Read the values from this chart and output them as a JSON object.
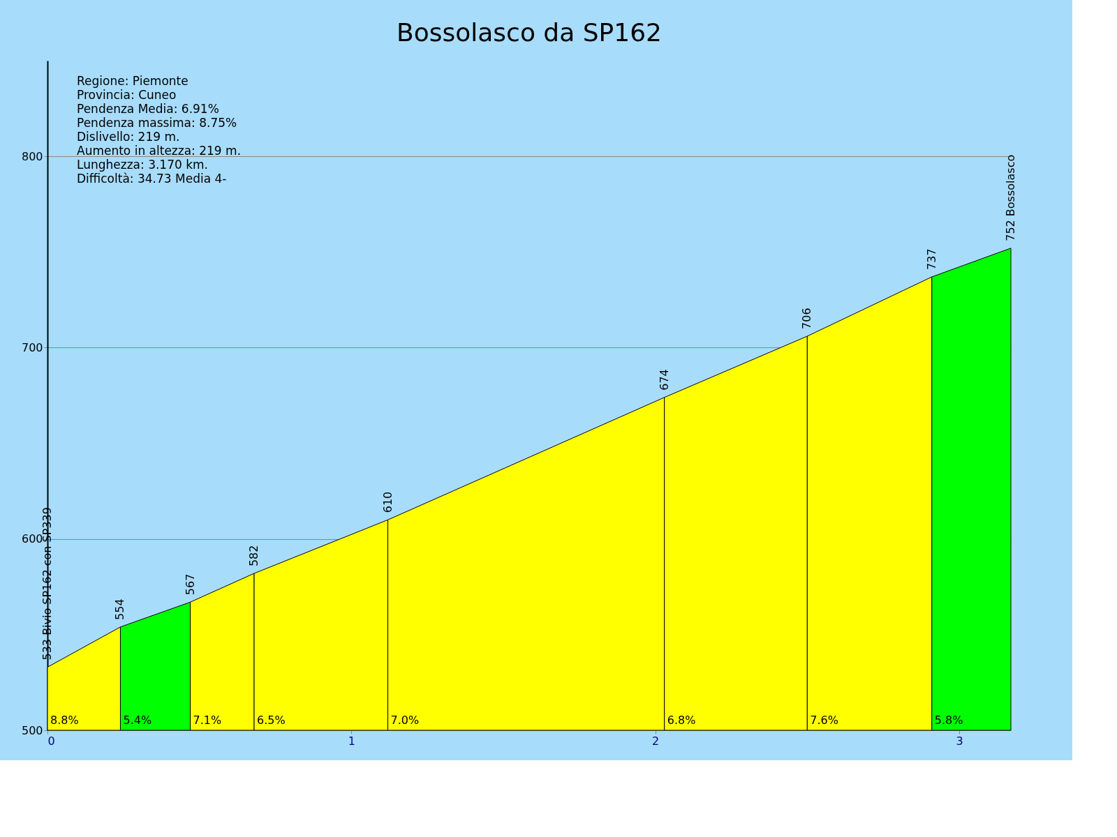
{
  "chart_data": {
    "type": "area",
    "title": "Bossolasco da SP162",
    "xlim": [
      0,
      3.17
    ],
    "xticks": [
      0,
      1,
      2,
      3
    ],
    "ylim": [
      500,
      850
    ],
    "yticks": [
      500,
      600,
      700,
      800
    ],
    "grid": "y",
    "series": [
      {
        "color": "#ffff00",
        "x": [
          0,
          0.24
        ],
        "values": [
          533,
          554
        ],
        "value_labels": [
          "533 Bivio SP162 con SP339",
          "554"
        ]
      },
      {
        "color": "#00ff00",
        "x": [
          0.24,
          0.47
        ],
        "values": [
          554,
          567
        ],
        "value_labels": [
          null,
          "567"
        ]
      },
      {
        "color": "#ffff00",
        "x": [
          0.47,
          0.68
        ],
        "values": [
          567,
          582
        ],
        "value_labels": [
          null,
          "582"
        ]
      },
      {
        "color": "#ffff00",
        "x": [
          0.68,
          1.12
        ],
        "values": [
          582,
          610
        ],
        "value_labels": [
          null,
          "610"
        ]
      },
      {
        "color": "#ffff00",
        "x": [
          1.12,
          2.03
        ],
        "values": [
          610,
          674
        ],
        "value_labels": [
          null,
          "674"
        ]
      },
      {
        "color": "#ffff00",
        "x": [
          2.03,
          2.5
        ],
        "values": [
          674,
          706
        ],
        "value_labels": [
          null,
          "706"
        ]
      },
      {
        "color": "#ffff00",
        "x": [
          2.5,
          2.91
        ],
        "values": [
          706,
          737
        ],
        "value_labels": [
          null,
          "737"
        ]
      },
      {
        "color": "#00ff00",
        "x": [
          2.91,
          3.17
        ],
        "values": [
          737,
          752
        ],
        "value_labels": [
          null,
          "752 Bossolasco"
        ]
      }
    ],
    "annotations": [
      "Regione: Piemonte",
      "Provincia: Cuneo",
      "Pendenza Media: 6.91%",
      "Pendenza massima: 8.75%",
      "Dislivello:   219 m.",
      "Aumento in altezza:   219 m.",
      "Lunghezza:  3.170 km.",
      "Difficoltà: 34.73 Media 4-",
      {
        "text": "8.8%",
        "x": 0,
        "y": 500
      },
      {
        "text": "5.4%",
        "x": 0.24,
        "y": 500
      },
      {
        "text": "7.1%",
        "x": 0.47,
        "y": 500
      },
      {
        "text": "6.5%",
        "x": 0.68,
        "y": 500
      },
      {
        "text": "7.0%",
        "x": 1.12,
        "y": 500
      },
      {
        "text": "6.8%",
        "x": 2.03,
        "y": 500
      },
      {
        "text": "7.6%",
        "x": 2.5,
        "y": 500
      },
      {
        "text": "5.8%",
        "x": 2.91,
        "y": 500
      }
    ]
  }
}
